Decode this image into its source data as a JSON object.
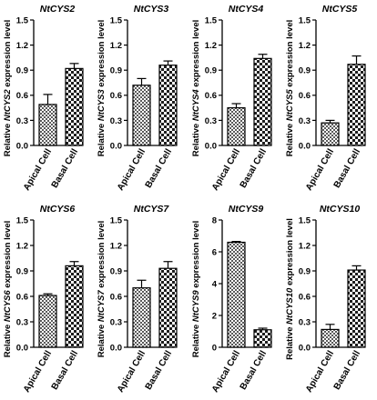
{
  "chart_data": [
    {
      "type": "bar",
      "title": "NtCYS2",
      "ylabel_prefix": "Relative ",
      "ylabel_gene": "NtCYS2",
      "ylabel_suffix": " expression level",
      "categories": [
        "Apical Cell",
        "Basal Cell"
      ],
      "values": [
        0.49,
        0.92
      ],
      "errors": [
        0.12,
        0.06
      ],
      "ylim": [
        0,
        1.5
      ],
      "yticks": [
        "0.0",
        "0.3",
        "0.6",
        "0.9",
        "1.2",
        "1.5"
      ]
    },
    {
      "type": "bar",
      "title": "NtCYS3",
      "ylabel_prefix": "Relative ",
      "ylabel_gene": "NtCYS3",
      "ylabel_suffix": " expression level",
      "categories": [
        "Apical Cell",
        "Basal Cell"
      ],
      "values": [
        0.72,
        0.96
      ],
      "errors": [
        0.08,
        0.05
      ],
      "ylim": [
        0,
        1.5
      ],
      "yticks": [
        "0.0",
        "0.3",
        "0.6",
        "0.9",
        "1.2",
        "1.5"
      ]
    },
    {
      "type": "bar",
      "title": "NtCYS4",
      "ylabel_prefix": "Relative ",
      "ylabel_gene": "NtCYS4",
      "ylabel_suffix": " expression level",
      "categories": [
        "Apical Cell",
        "Basal Cell"
      ],
      "values": [
        0.45,
        1.04
      ],
      "errors": [
        0.05,
        0.05
      ],
      "ylim": [
        0,
        1.5
      ],
      "yticks": [
        "0.0",
        "0.3",
        "0.6",
        "0.9",
        "1.2",
        "1.5"
      ]
    },
    {
      "type": "bar",
      "title": "NtCYS5",
      "ylabel_prefix": "Relative ",
      "ylabel_gene": "NtCYS5",
      "ylabel_suffix": " expression level",
      "categories": [
        "Apical Cell",
        "Basal Cell"
      ],
      "values": [
        0.27,
        0.97
      ],
      "errors": [
        0.03,
        0.1
      ],
      "ylim": [
        0,
        1.5
      ],
      "yticks": [
        "0.0",
        "0.3",
        "0.6",
        "0.9",
        "1.2",
        "1.5"
      ]
    },
    {
      "type": "bar",
      "title": "NtCYS6",
      "ylabel_prefix": "Relative ",
      "ylabel_gene": "NtCYS6",
      "ylabel_suffix": " expression level",
      "categories": [
        "Apical Cell",
        "Basal Cell"
      ],
      "values": [
        0.61,
        0.96
      ],
      "errors": [
        0.02,
        0.05
      ],
      "ylim": [
        0,
        1.5
      ],
      "yticks": [
        "0.0",
        "0.3",
        "0.6",
        "0.9",
        "1.2",
        "1.5"
      ]
    },
    {
      "type": "bar",
      "title": "NtCYS7",
      "ylabel_prefix": "Relative ",
      "ylabel_gene": "NtCYS7",
      "ylabel_suffix": " expression level",
      "categories": [
        "Apical Cell",
        "Basal Cell"
      ],
      "values": [
        0.7,
        0.93
      ],
      "errors": [
        0.09,
        0.08
      ],
      "ylim": [
        0,
        1.5
      ],
      "yticks": [
        "0.0",
        "0.3",
        "0.6",
        "0.9",
        "1.2",
        "1.5"
      ]
    },
    {
      "type": "bar",
      "title": "NtCYS9",
      "ylabel_prefix": "Relative ",
      "ylabel_gene": "NtCYS9",
      "ylabel_suffix": " expression level",
      "categories": [
        "Apical Cell",
        "Basal Cell"
      ],
      "values": [
        6.6,
        1.1
      ],
      "errors": [
        0.05,
        0.1
      ],
      "ylim": [
        0,
        8
      ],
      "yticks": [
        "0",
        "2",
        "4",
        "6",
        "8"
      ]
    },
    {
      "type": "bar",
      "title": "NtCYS10",
      "ylabel_prefix": "Relative ",
      "ylabel_gene": "NtCYS10",
      "ylabel_suffix": " expression level",
      "categories": [
        "Apical Cell",
        "Basal Cell"
      ],
      "values": [
        0.21,
        0.91
      ],
      "errors": [
        0.06,
        0.05
      ],
      "ylim": [
        0,
        1.5
      ],
      "yticks": [
        "0.0",
        "0.3",
        "0.6",
        "0.9",
        "1.2",
        "1.5"
      ]
    }
  ],
  "style": {
    "bar_stroke": "#000000",
    "dark_square": "#1e1e1e",
    "light_square": "#ffffff"
  }
}
